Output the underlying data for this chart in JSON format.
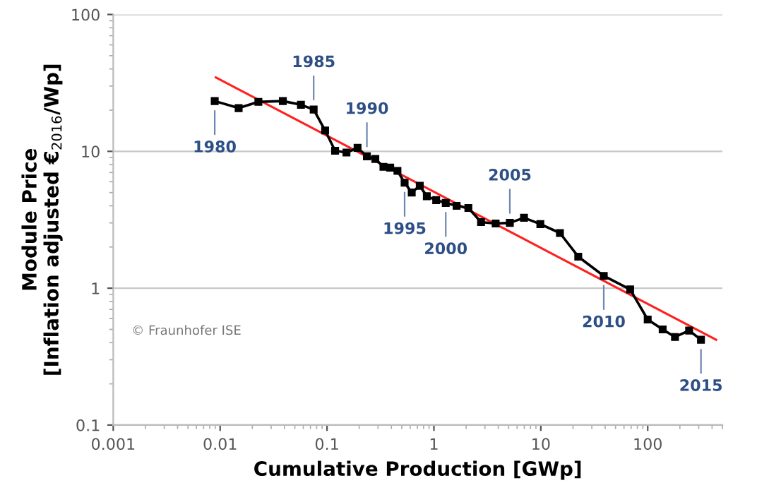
{
  "chart_data": {
    "type": "line",
    "xlabel": "Cumulative Production [GWp]",
    "ylabel": "Module Price\n[Inflation adjusted €$_{2016}$/Wp]",
    "log": "xy",
    "xlim": [
      0.001,
      500
    ],
    "ylim": [
      0.1,
      100
    ],
    "xticks": [
      0.001,
      0.01,
      0.1,
      1,
      10,
      100
    ],
    "yticks": [
      0.1,
      1,
      10,
      100
    ],
    "grid": "y",
    "series": [
      {
        "color": "#000000",
        "marker": "square",
        "x": [
          0.0089,
          0.0149,
          0.0228,
          0.0386,
          0.057,
          0.075,
          0.096,
          0.119,
          0.152,
          0.193,
          0.236,
          0.283,
          0.337,
          0.39,
          0.456,
          0.532,
          0.62,
          0.737,
          0.858,
          1.05,
          1.29,
          1.63,
          2.1,
          2.76,
          3.78,
          5.13,
          6.96,
          9.9,
          15.1,
          22.4,
          38.8,
          68.5,
          100,
          138,
          180,
          244,
          315
        ],
        "values": [
          23.3,
          20.7,
          23,
          23.3,
          21.9,
          20.2,
          14.2,
          10.1,
          9.8,
          10.6,
          9.2,
          8.8,
          7.7,
          7.6,
          7.2,
          5.9,
          5.0,
          5.6,
          4.7,
          4.4,
          4.2,
          4.0,
          3.86,
          3.04,
          2.97,
          3.0,
          3.27,
          2.94,
          2.53,
          1.7,
          1.23,
          0.98,
          0.59,
          0.5,
          0.44,
          0.49,
          0.42
        ]
      },
      {
        "color": "#ff2020",
        "marker": "none",
        "x": [
          0.0091,
          437
        ],
        "values": [
          34.7,
          0.42
        ]
      }
    ],
    "annotations": [
      {
        "text": "1980",
        "x": 0.0089,
        "y": 23.3
      },
      {
        "text": "1985",
        "x": 0.075,
        "y": 20.2
      },
      {
        "text": "1990",
        "x": 0.236,
        "y": 9.2
      },
      {
        "text": "1995",
        "x": 0.532,
        "y": 5.9
      },
      {
        "text": "2000",
        "x": 1.29,
        "y": 4.2
      },
      {
        "text": "2005",
        "x": 5.13,
        "y": 3.0
      },
      {
        "text": "2010",
        "x": 38.8,
        "y": 1.23
      },
      {
        "text": "2015",
        "x": 315,
        "y": 0.42
      },
      "© Fraunhofer ISE"
    ]
  }
}
